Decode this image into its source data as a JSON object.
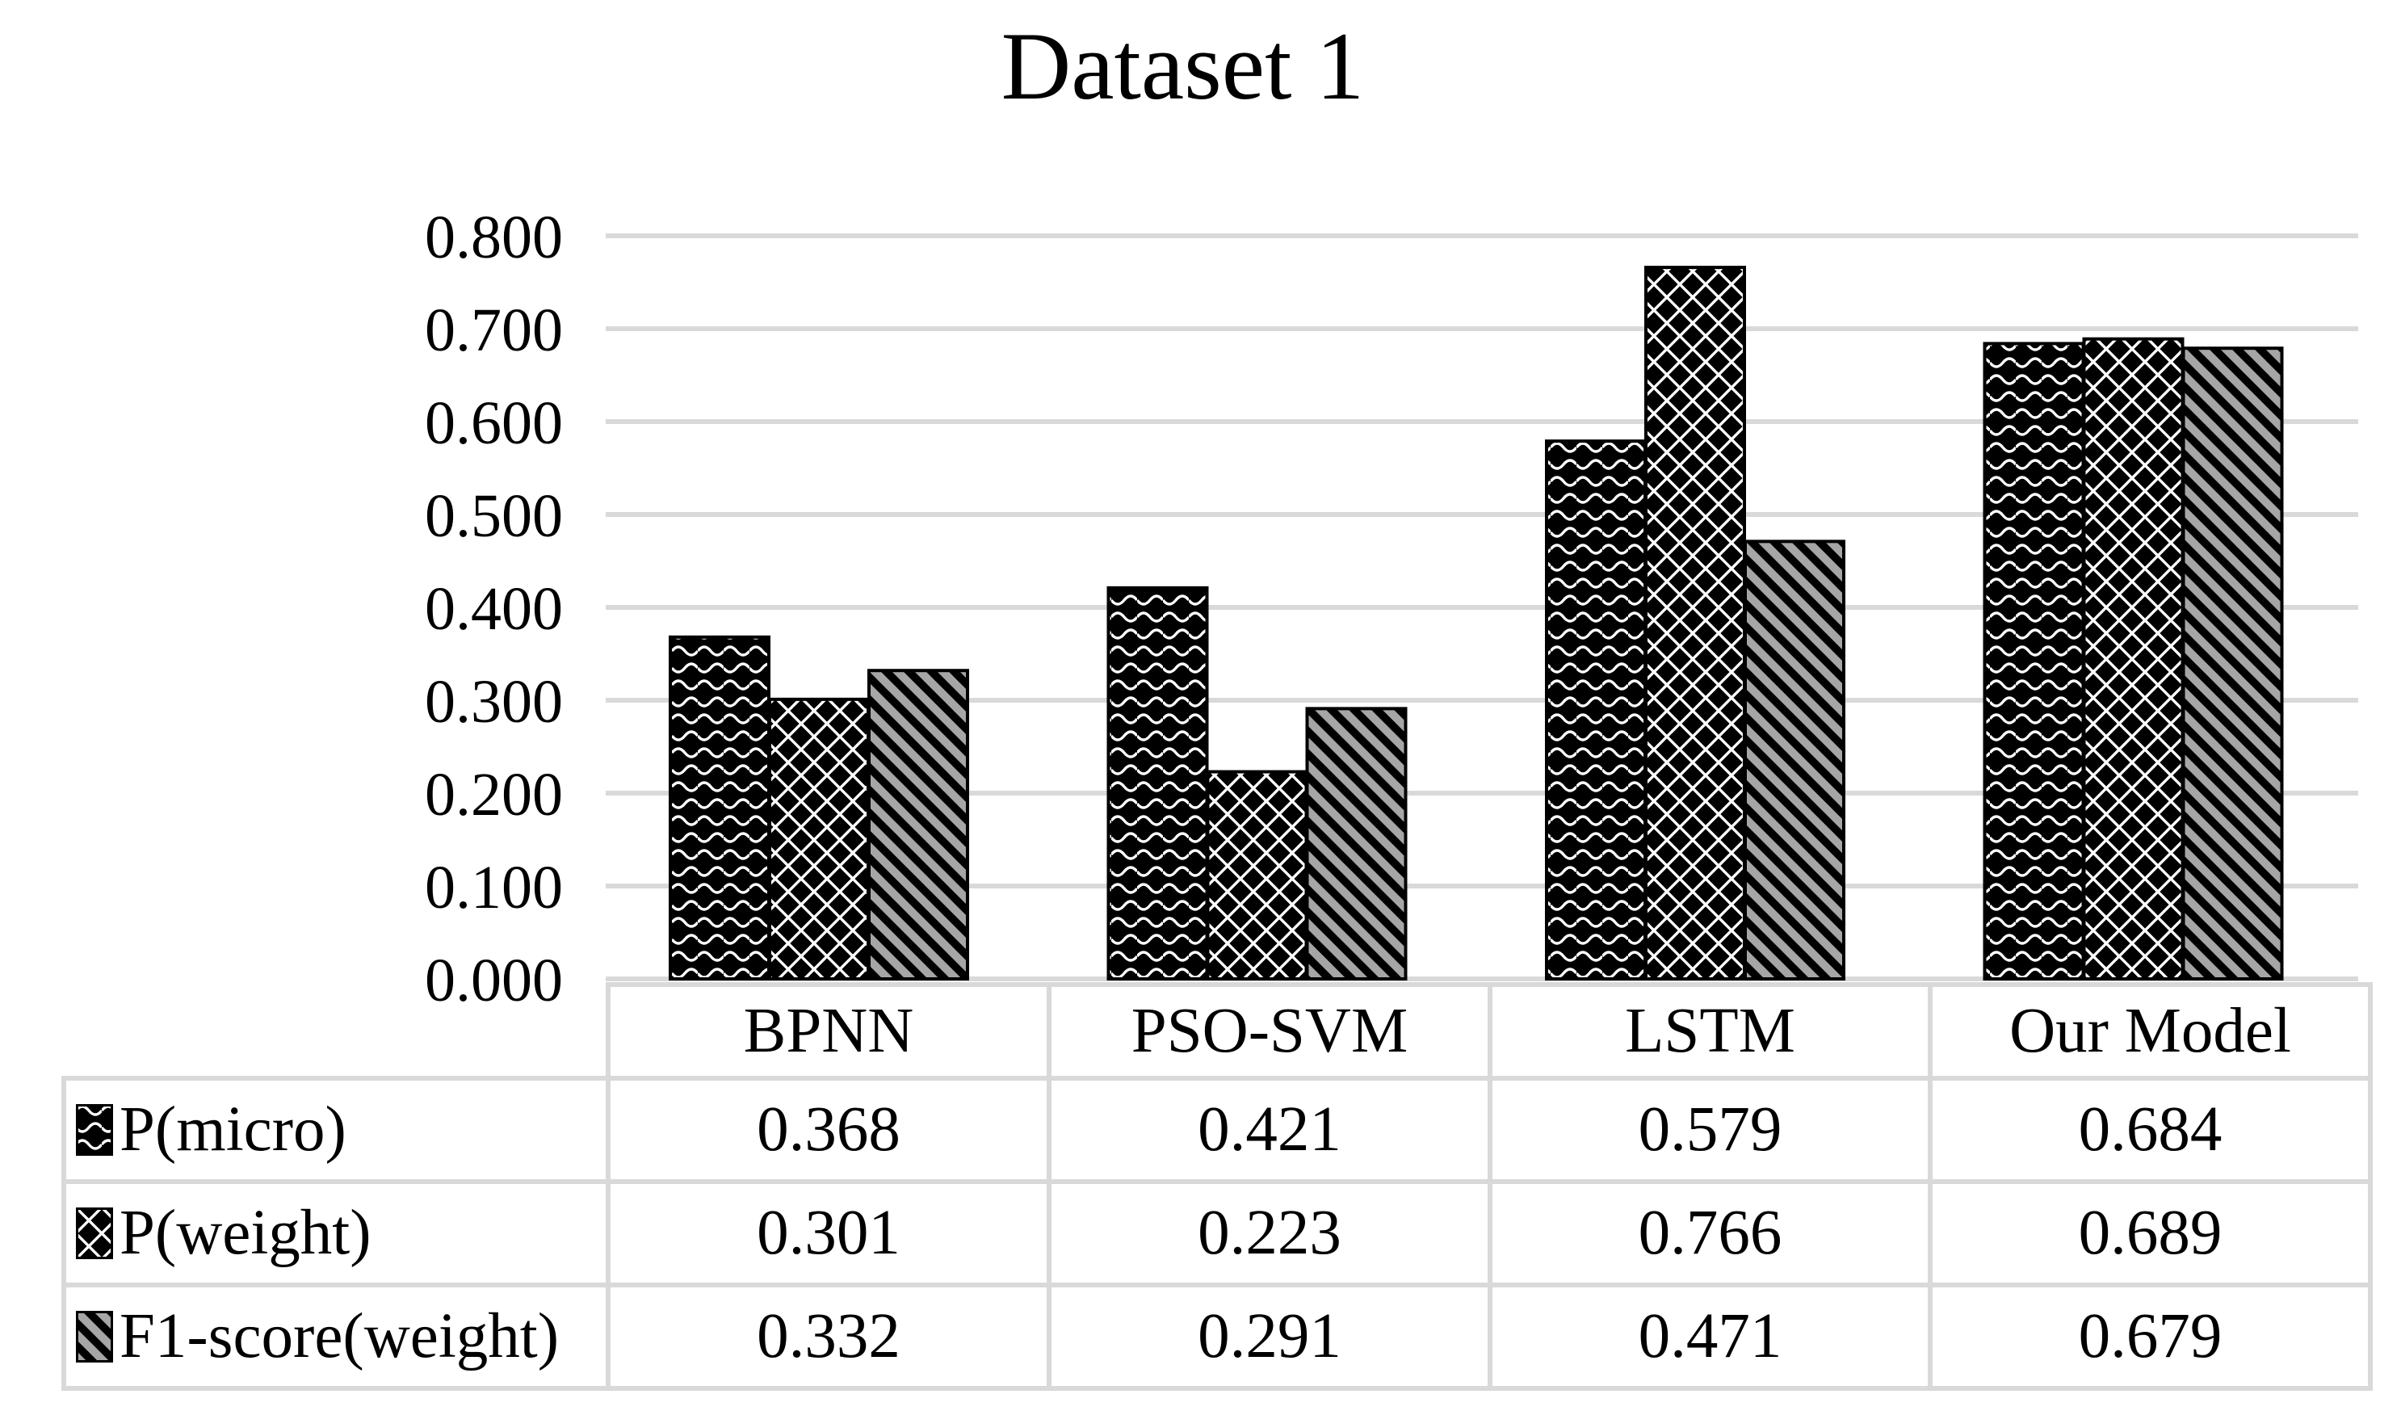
{
  "title": "Dataset 1",
  "colors": {
    "background": "#ffffff",
    "gridline": "#d9d9d9",
    "table_border": "#d9d9d9",
    "bar_fill": "#000000",
    "pattern_white": "#ffffff",
    "pattern_gray": "#a6a6a6",
    "text": "#000000"
  },
  "y_axis": {
    "min": 0.0,
    "max": 0.8,
    "step": 0.1,
    "tick_labels": [
      "0.000",
      "0.100",
      "0.200",
      "0.300",
      "0.400",
      "0.500",
      "0.600",
      "0.700",
      "0.800"
    ]
  },
  "chart_data": {
    "type": "bar",
    "title": "Dataset 1",
    "categories": [
      "BPNN",
      "PSO-SVM",
      "LSTM",
      "Our Model"
    ],
    "series": [
      {
        "name": "P(micro)",
        "pattern_id": "wave",
        "pattern": "white-wavy-lines-on-black",
        "values": [
          0.368,
          0.421,
          0.579,
          0.684
        ]
      },
      {
        "name": "P(weight)",
        "pattern_id": "diamond",
        "pattern": "white-diamond-crosshatch-on-black",
        "values": [
          0.301,
          0.223,
          0.766,
          0.689
        ]
      },
      {
        "name": "F1-score(weight)",
        "pattern_id": "stripe",
        "pattern": "gray-diagonal-stripes-on-black",
        "values": [
          0.332,
          0.291,
          0.471,
          0.679
        ]
      }
    ],
    "ylim": [
      0.0,
      0.8
    ],
    "grid": "horizontal",
    "legend_position": "table-left-column",
    "xlabel": "",
    "ylabel": ""
  },
  "table": {
    "column_headers": [
      "BPNN",
      "PSO-SVM",
      "LSTM",
      "Our Model"
    ],
    "rows": [
      {
        "label": "P(micro)",
        "swatch_icon": "wave-pattern-icon",
        "values": [
          "0.368",
          "0.421",
          "0.579",
          "0.684"
        ]
      },
      {
        "label": "P(weight)",
        "swatch_icon": "diamond-crosshatch-pattern-icon",
        "values": [
          "0.301",
          "0.223",
          "0.766",
          "0.689"
        ]
      },
      {
        "label": "F1-score(weight)",
        "swatch_icon": "diagonal-stripe-pattern-icon",
        "values": [
          "0.332",
          "0.291",
          "0.471",
          "0.679"
        ]
      }
    ]
  }
}
